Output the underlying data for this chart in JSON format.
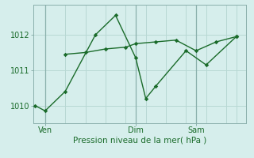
{
  "title": "Pression niveau de la mer( hPa )",
  "bg_color": "#d6eeec",
  "grid_color": "#b8d8d4",
  "line_color": "#1a6b2a",
  "line1_x": [
    0,
    0.5,
    1.5,
    3.0,
    4.0,
    5.0,
    5.5,
    6.0,
    7.5,
    8.5,
    10.0
  ],
  "line1_y": [
    1010.0,
    1009.85,
    1010.4,
    1012.0,
    1012.55,
    1011.35,
    1010.2,
    1010.55,
    1011.55,
    1011.15,
    1011.95
  ],
  "line2_x": [
    1.5,
    2.5,
    3.5,
    4.5,
    5.0,
    6.0,
    7.0,
    8.0,
    9.0,
    10.0
  ],
  "line2_y": [
    1011.45,
    1011.5,
    1011.6,
    1011.65,
    1011.75,
    1011.8,
    1011.85,
    1011.55,
    1011.8,
    1011.95
  ],
  "xtick_positions": [
    0.5,
    5.0,
    8.0
  ],
  "xtick_labels": [
    "Ven",
    "Dim",
    "Sam"
  ],
  "ytick_positions": [
    1010,
    1011,
    1012
  ],
  "ylim": [
    1009.5,
    1012.85
  ],
  "xlim": [
    -0.1,
    10.5
  ],
  "vline_x": [
    0.5,
    5.0,
    8.0
  ],
  "vline_color": "#8ab0ac",
  "marker": "D",
  "markersize": 2.8,
  "linewidth": 1.0,
  "xlabel_fontsize": 7.5,
  "tick_fontsize": 7
}
